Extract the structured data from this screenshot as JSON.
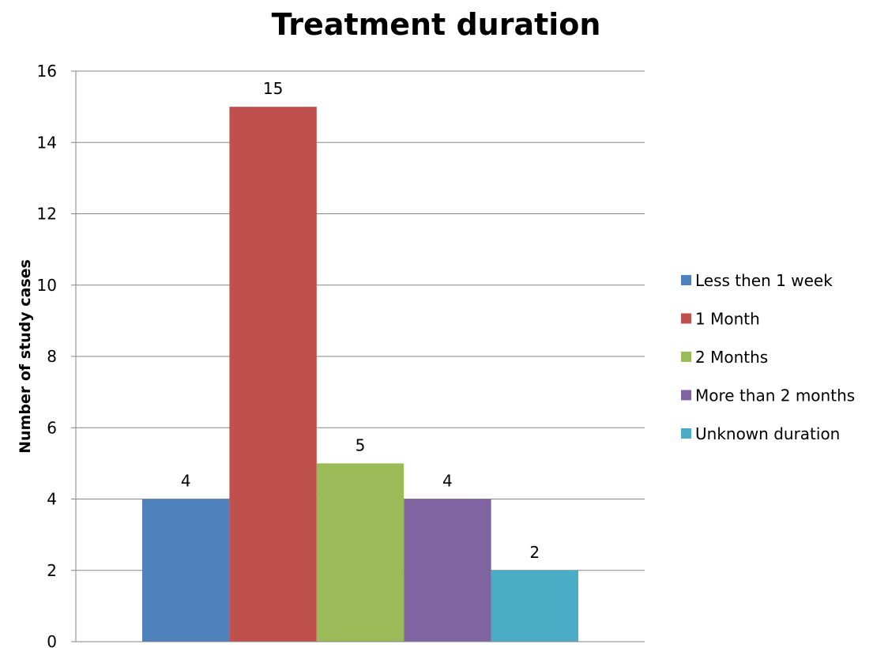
{
  "chart_data": {
    "type": "bar",
    "title": "Treatment duration",
    "xlabel": "",
    "ylabel": "Number of study cases",
    "ylim": [
      0,
      16
    ],
    "yticks": [
      0,
      2,
      4,
      6,
      8,
      10,
      12,
      14,
      16
    ],
    "grid": true,
    "legend_position": "right",
    "series": [
      {
        "name": "Less then 1 week",
        "value": 4,
        "color": "#4F81BD"
      },
      {
        "name": "1 Month",
        "value": 15,
        "color": "#C0504D"
      },
      {
        "name": "2 Months",
        "value": 5,
        "color": "#9BBB59"
      },
      {
        "name": "More than 2 months",
        "value": 4,
        "color": "#8064A2"
      },
      {
        "name": "Unknown duration",
        "value": 2,
        "color": "#4BACC6"
      }
    ]
  }
}
